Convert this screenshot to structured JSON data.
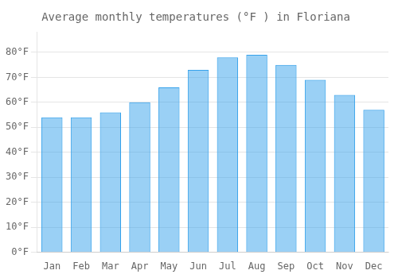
{
  "chart_data": {
    "type": "bar",
    "title": "Average monthly temperatures (°F ) in Floriana",
    "categories": [
      "Jan",
      "Feb",
      "Mar",
      "Apr",
      "May",
      "Jun",
      "Jul",
      "Aug",
      "Sep",
      "Oct",
      "Nov",
      "Dec"
    ],
    "values": [
      54,
      54,
      56,
      60,
      66,
      73,
      78,
      79,
      75,
      69,
      63,
      57
    ],
    "ylim": [
      0,
      88
    ],
    "yticks": [
      {
        "value": 0,
        "label": "0°F"
      },
      {
        "value": 10,
        "label": "10°F"
      },
      {
        "value": 20,
        "label": "20°F"
      },
      {
        "value": 30,
        "label": "30°F"
      },
      {
        "value": 40,
        "label": "40°F"
      },
      {
        "value": 50,
        "label": "50°F"
      },
      {
        "value": 60,
        "label": "60°F"
      },
      {
        "value": 70,
        "label": "70°F"
      },
      {
        "value": 80,
        "label": "80°F"
      }
    ],
    "grid": true
  }
}
